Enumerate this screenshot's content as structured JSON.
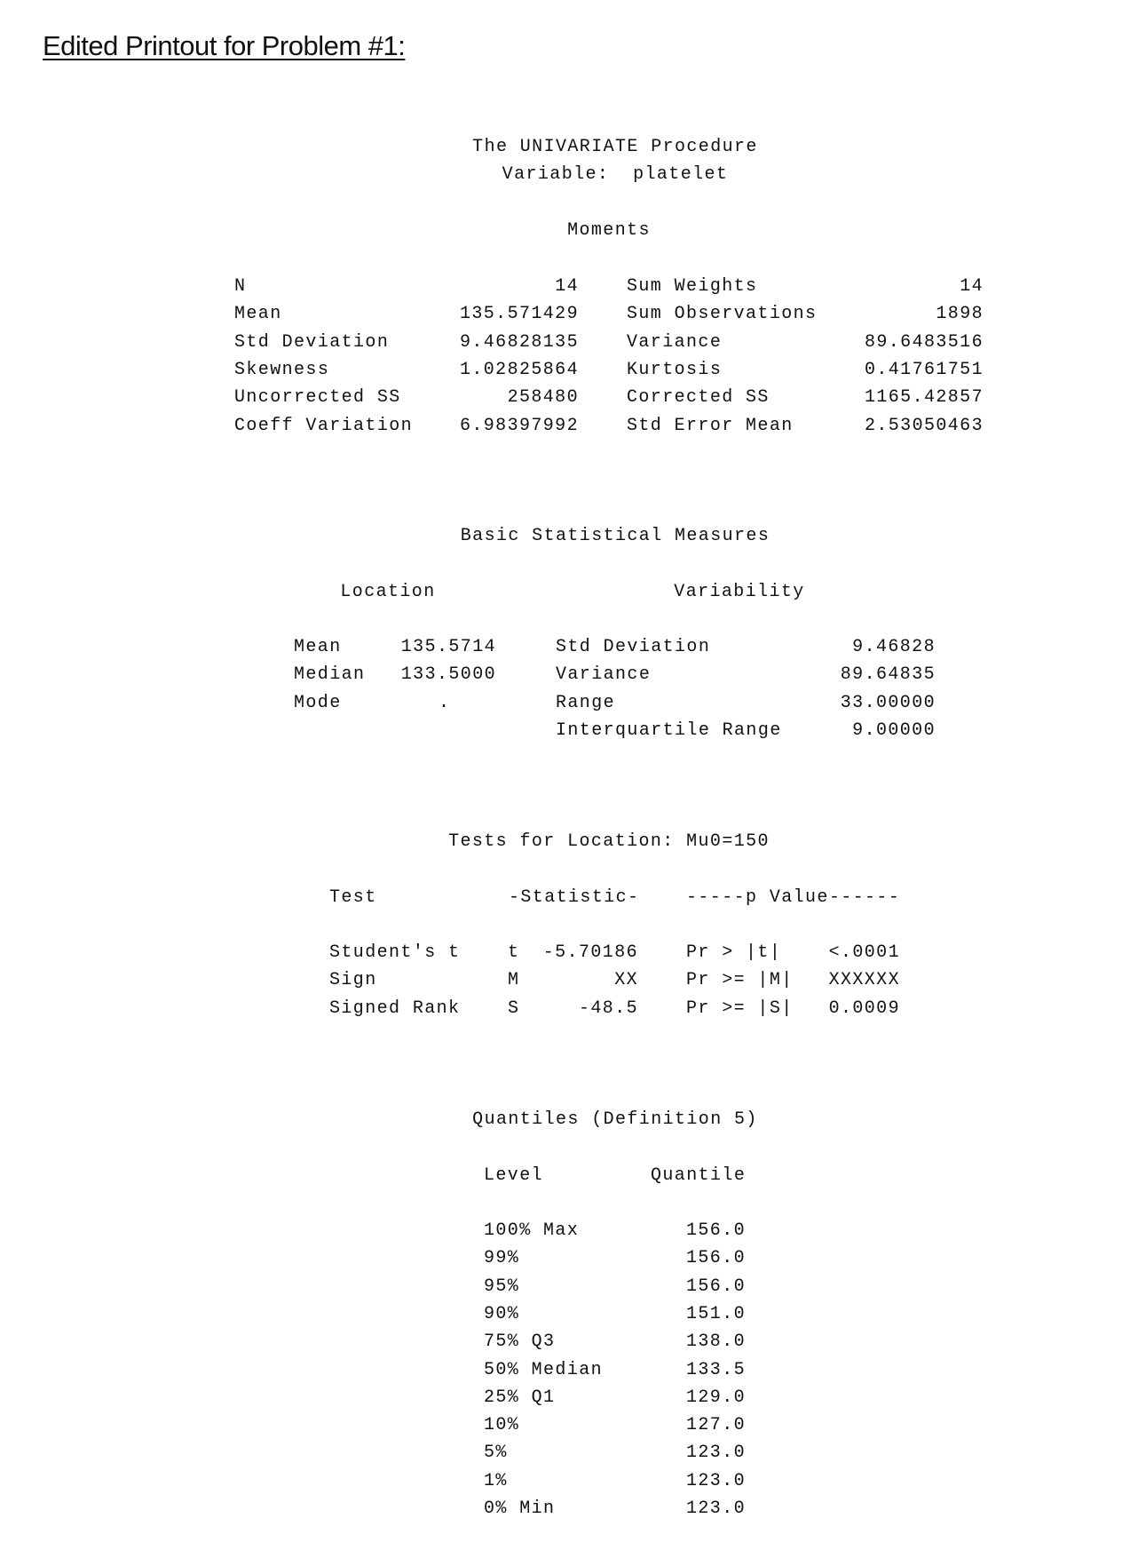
{
  "heading": "Edited Printout for Problem #1:",
  "procedure": "The UNIVARIATE Procedure",
  "variable": "Variable:  platelet",
  "moments": {
    "title": "Moments",
    "rows": [
      {
        "label1": "N",
        "value1": "14",
        "label2": "Sum Weights",
        "value2": "14"
      },
      {
        "label1": "Mean",
        "value1": "135.571429",
        "label2": "Sum Observations",
        "value2": "1898"
      },
      {
        "label1": "Std Deviation",
        "value1": "9.46828135",
        "label2": "Variance",
        "value2": "89.6483516"
      },
      {
        "label1": "Skewness",
        "value1": "1.02825864",
        "label2": "Kurtosis",
        "value2": "0.41761751"
      },
      {
        "label1": "Uncorrected SS",
        "value1": "258480",
        "label2": "Corrected SS",
        "value2": "1165.42857"
      },
      {
        "label1": "Coeff Variation",
        "value1": "6.98397992",
        "label2": "Std Error Mean",
        "value2": "2.53050463"
      }
    ]
  },
  "basic": {
    "title": "Basic Statistical Measures",
    "location_header": "Location",
    "variability_header": "Variability",
    "location": [
      {
        "label": "Mean",
        "value": "135.5714"
      },
      {
        "label": "Median",
        "value": "133.5000"
      },
      {
        "label": "Mode",
        "value": "."
      }
    ],
    "variability": [
      {
        "label": "Std Deviation",
        "value": "9.46828"
      },
      {
        "label": "Variance",
        "value": "89.64835"
      },
      {
        "label": "Range",
        "value": "33.00000"
      },
      {
        "label": "Interquartile Range",
        "value": "9.00000"
      }
    ]
  },
  "tests": {
    "title": "Tests for Location: Mu0=150",
    "headers": {
      "test": "Test",
      "statistic": "-Statistic-",
      "pvalue": "-----p Value------"
    },
    "rows": [
      {
        "test": "Student's t",
        "sym": "t",
        "stat": "-5.70186",
        "pr": "Pr > |t|",
        "p": "<.0001"
      },
      {
        "test": "Sign",
        "sym": "M",
        "stat": "XX",
        "pr": "Pr >= |M|",
        "p": "XXXXXX"
      },
      {
        "test": "Signed Rank",
        "sym": "S",
        "stat": "-48.5",
        "pr": "Pr >= |S|",
        "p": "0.0009"
      }
    ]
  },
  "quantiles": {
    "title": "Quantiles (Definition 5)",
    "headers": {
      "level": "Level",
      "quantile": "Quantile"
    },
    "rows": [
      {
        "level": "100% Max",
        "value": "156.0"
      },
      {
        "level": "99%",
        "value": "156.0"
      },
      {
        "level": "95%",
        "value": "156.0"
      },
      {
        "level": "90%",
        "value": "151.0"
      },
      {
        "level": "75% Q3",
        "value": "138.0"
      },
      {
        "level": "50% Median",
        "value": "133.5"
      },
      {
        "level": "25% Q1",
        "value": "129.0"
      },
      {
        "level": "10%",
        "value": "127.0"
      },
      {
        "level": "5%",
        "value": "123.0"
      },
      {
        "level": "1%",
        "value": "123.0"
      },
      {
        "level": "0% Min",
        "value": "123.0"
      }
    ]
  }
}
